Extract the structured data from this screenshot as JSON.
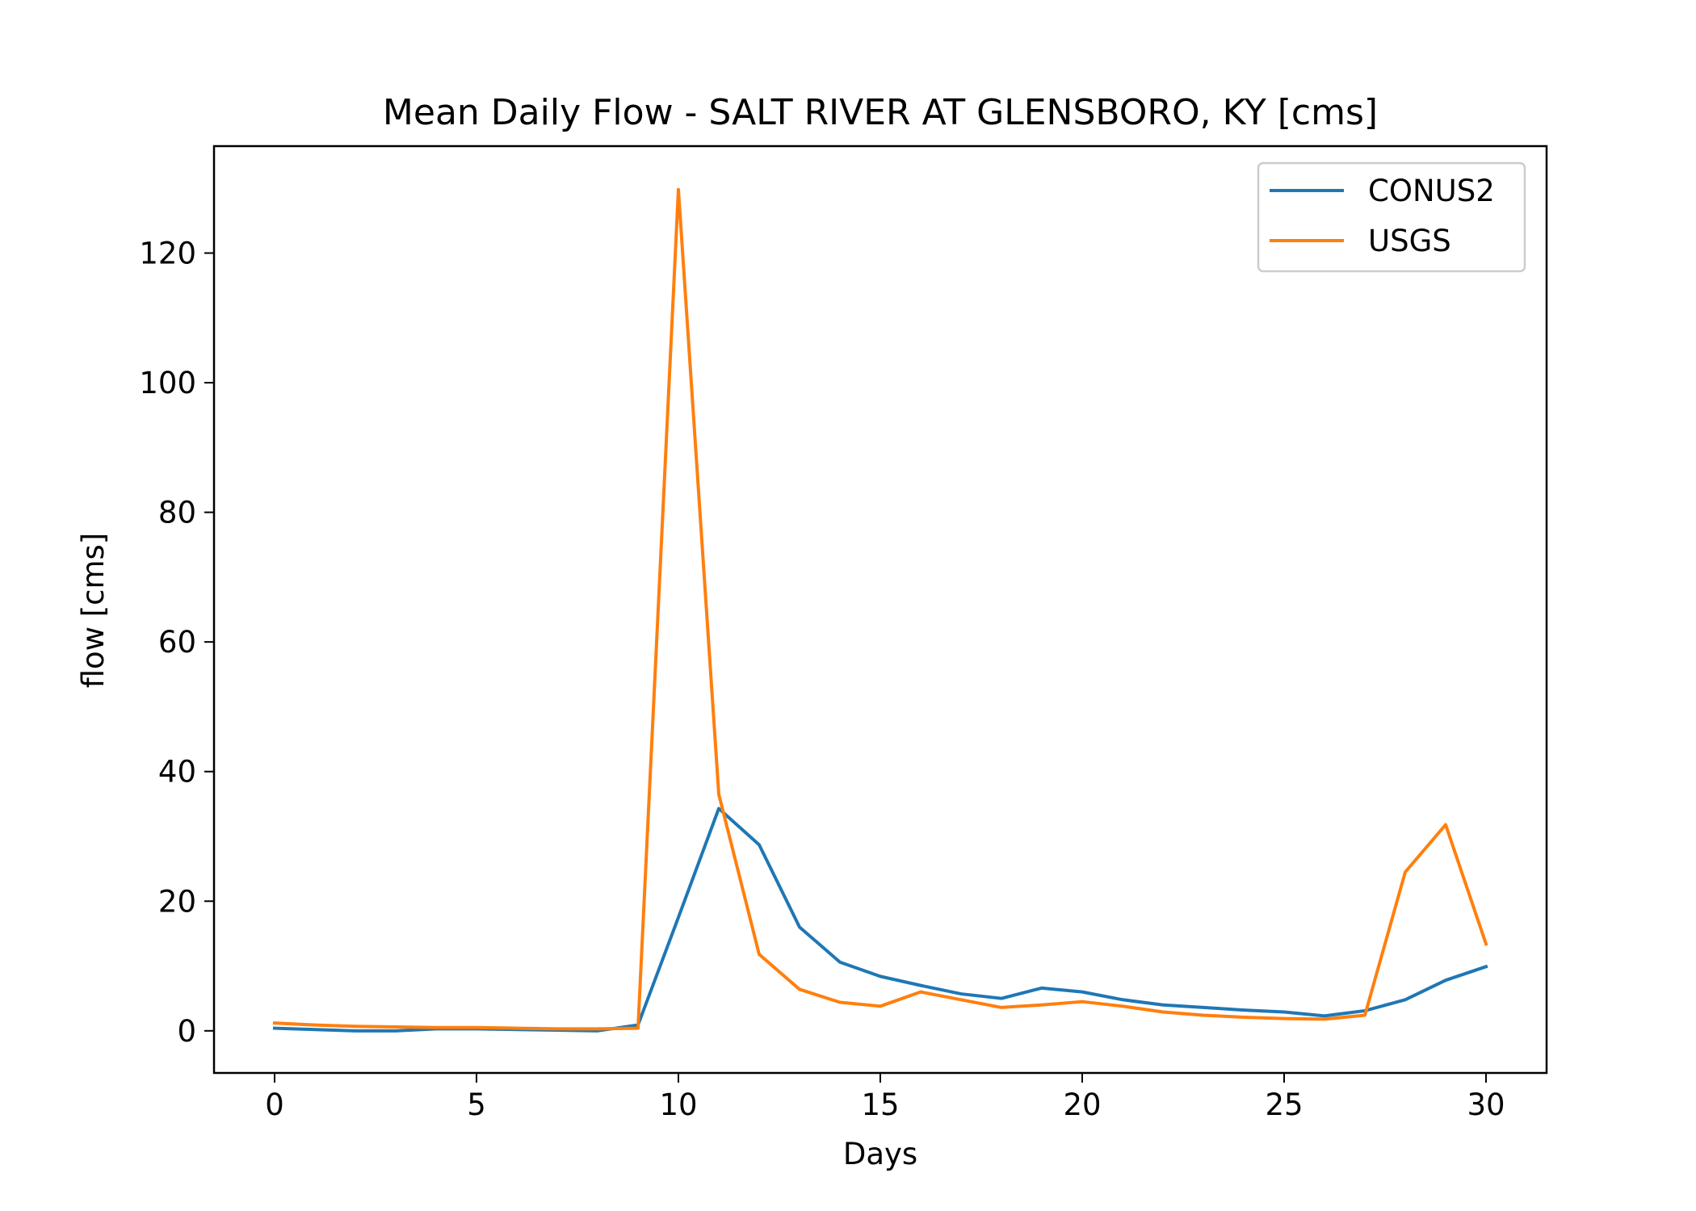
{
  "chart_data": {
    "type": "line",
    "title": "Mean Daily Flow - SALT RIVER AT GLENSBORO, KY [cms]",
    "xlabel": "Days",
    "ylabel": "flow [cms]",
    "xlim": [
      -1.5,
      31.5
    ],
    "ylim": [
      -6.5,
      136.5
    ],
    "xticks": [
      0,
      5,
      10,
      15,
      20,
      25,
      30
    ],
    "yticks": [
      0,
      20,
      40,
      60,
      80,
      100,
      120
    ],
    "grid": false,
    "legend_position": "top-right",
    "x": [
      0,
      1,
      2,
      3,
      4,
      5,
      6,
      7,
      8,
      9,
      10,
      11,
      12,
      13,
      14,
      15,
      16,
      17,
      18,
      19,
      20,
      21,
      22,
      23,
      24,
      25,
      26,
      27,
      28,
      29,
      30
    ],
    "series": [
      {
        "name": "CONUS2",
        "color": "#1f77b4",
        "values": [
          0.4,
          0.2,
          0.0,
          0.0,
          0.3,
          0.3,
          0.2,
          0.1,
          0.0,
          0.9,
          17.5,
          34.3,
          28.7,
          16.0,
          10.6,
          8.4,
          7.0,
          5.7,
          5.0,
          6.6,
          6.0,
          4.8,
          4.0,
          3.6,
          3.2,
          2.9,
          2.3,
          3.1,
          4.8,
          7.8,
          9.9
        ]
      },
      {
        "name": "USGS",
        "color": "#ff7f0e",
        "values": [
          1.2,
          0.9,
          0.7,
          0.6,
          0.5,
          0.5,
          0.4,
          0.3,
          0.3,
          0.4,
          129.8,
          36.5,
          11.8,
          6.4,
          4.4,
          3.8,
          6.0,
          4.8,
          3.6,
          4.0,
          4.5,
          3.8,
          2.9,
          2.4,
          2.1,
          1.9,
          1.8,
          2.4,
          24.5,
          31.8,
          13.4
        ]
      }
    ]
  }
}
